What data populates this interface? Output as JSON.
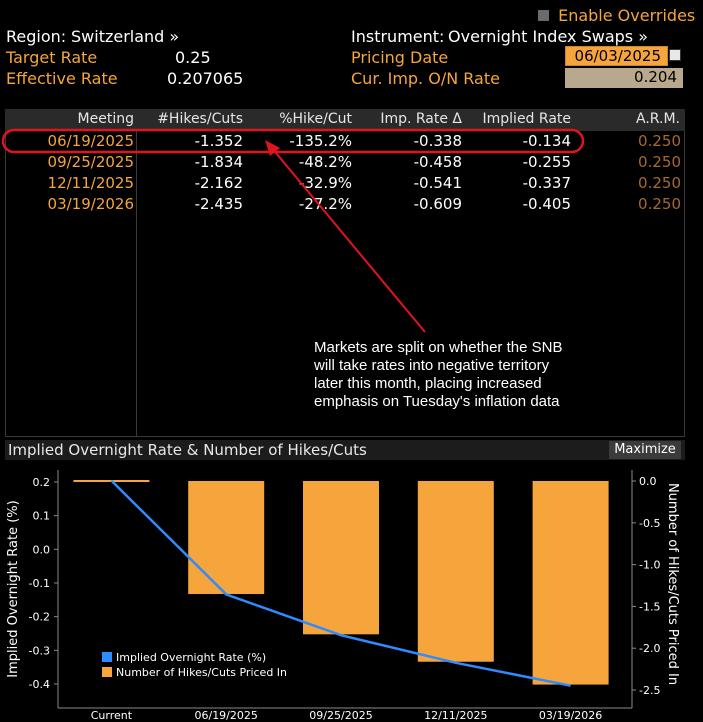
{
  "header": {
    "region_label": "Region:",
    "region_value": "Switzerland »",
    "instrument_label": "Instrument:",
    "instrument_value": "Overnight Index Swaps »",
    "enable_overrides": "Enable Overrides",
    "target_rate_label": "Target Rate",
    "target_rate_value": "0.25",
    "effective_rate_label": "Effective Rate",
    "effective_rate_value": "0.207065",
    "pricing_date_label": "Pricing Date",
    "pricing_date_value": "06/03/2025",
    "cur_imp_label": "Cur. Imp. O/N Rate",
    "cur_imp_value": "0.204"
  },
  "table": {
    "columns": [
      "Meeting",
      "#Hikes/Cuts",
      "%Hike/Cut",
      "Imp. Rate Δ",
      "Implied Rate",
      "A.R.M."
    ],
    "rows": [
      {
        "meeting": "06/19/2025",
        "hikes": "-1.352",
        "pct": "-135.2%",
        "delta": "-0.338",
        "implied": "-0.134",
        "arm": "0.250"
      },
      {
        "meeting": "09/25/2025",
        "hikes": "-1.834",
        "pct": "-48.2%",
        "delta": "-0.458",
        "implied": "-0.255",
        "arm": "0.250"
      },
      {
        "meeting": "12/11/2025",
        "hikes": "-2.162",
        "pct": "-32.9%",
        "delta": "-0.541",
        "implied": "-0.337",
        "arm": "0.250"
      },
      {
        "meeting": "03/19/2026",
        "hikes": "-2.435",
        "pct": "-27.2%",
        "delta": "-0.609",
        "implied": "-0.405",
        "arm": "0.250"
      }
    ]
  },
  "annotation": {
    "lines": [
      "Markets are split on whether the SNB",
      "will take rates into negative territory",
      "later this month, placing increased",
      "emphasis on Tuesday's inflation data"
    ]
  },
  "chart_panel": {
    "title": "Implied Overnight Rate & Number of Hikes/Cuts",
    "maximize_label": "Maximize"
  },
  "colors": {
    "orange": "#f5a53c",
    "blue": "#2f8bff",
    "annotation_red": "#e0141e"
  },
  "chart_data": {
    "type": "bar",
    "categories": [
      "Current",
      "06/19/2025",
      "09/25/2025",
      "12/11/2025",
      "03/19/2026"
    ],
    "series": [
      {
        "name": "Implied Overnight Rate (%)",
        "type": "line",
        "axis": "left",
        "values": [
          0.204,
          -0.134,
          -0.255,
          -0.337,
          -0.405
        ]
      },
      {
        "name": "Number of Hikes/Cuts Priced In",
        "type": "bar",
        "axis": "right",
        "values": [
          0,
          -1.352,
          -1.834,
          -2.162,
          -2.435
        ]
      }
    ],
    "ylabel": "Implied Overnight Rate (%)",
    "y2label": "Number of Hikes/Cuts Priced In",
    "ylim": [
      -0.4,
      0.2
    ],
    "yticks": [
      "0.2",
      "0.1",
      "0.0",
      "-0.1",
      "-0.2",
      "-0.3",
      "-0.4"
    ],
    "y2lim": [
      -2.5,
      0.0
    ],
    "y2ticks": [
      "0.0",
      "-0.5",
      "-1.0",
      "-1.5",
      "-2.0",
      "-2.5"
    ],
    "legend_position": "bottom-left"
  }
}
